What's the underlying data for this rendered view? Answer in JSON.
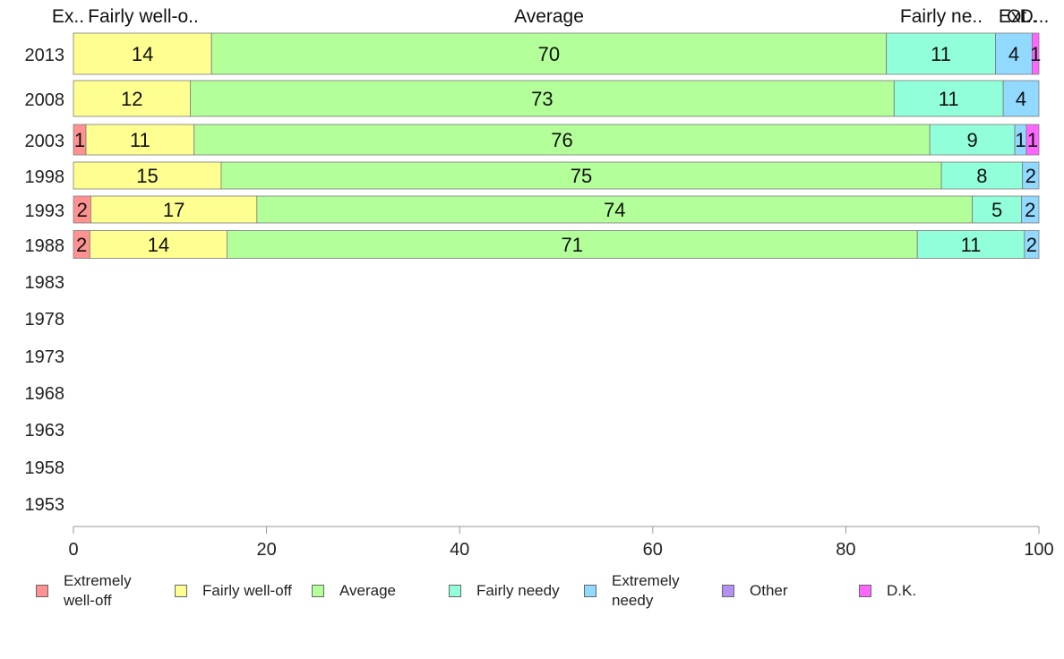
{
  "chart_data": {
    "type": "bar",
    "orientation": "horizontal",
    "stacked": true,
    "xlim": [
      0,
      100
    ],
    "x_ticks": [
      "0",
      "20",
      "40",
      "60",
      "80",
      "100"
    ],
    "categories": [
      "2013",
      "2008",
      "2003",
      "1998",
      "1993",
      "1988",
      "1983",
      "1978",
      "1973",
      "1968",
      "1963",
      "1958",
      "1953"
    ],
    "series": [
      {
        "name": "Extremely well-off",
        "color": "#ff9191",
        "values": [
          0,
          0,
          1.3,
          0,
          1.8,
          1.7,
          null,
          null,
          null,
          null,
          null,
          null,
          null
        ]
      },
      {
        "name": "Fairly well-off",
        "color": "#ffff91",
        "values": [
          14.3,
          12.1,
          11.2,
          15.3,
          17.2,
          14.2,
          null,
          null,
          null,
          null,
          null,
          null,
          null
        ]
      },
      {
        "name": "Average",
        "color": "#b3ff99",
        "values": [
          69.9,
          72.9,
          76.2,
          74.6,
          74.1,
          71.5,
          null,
          null,
          null,
          null,
          null,
          null,
          null
        ]
      },
      {
        "name": "Fairly needy",
        "color": "#91ffd9",
        "values": [
          11.3,
          11.3,
          8.8,
          8.4,
          5.1,
          11.1,
          null,
          null,
          null,
          null,
          null,
          null,
          null
        ]
      },
      {
        "name": "Extremely needy",
        "color": "#91d9ff",
        "values": [
          3.8,
          3.7,
          1.2,
          1.7,
          1.8,
          1.5,
          null,
          null,
          null,
          null,
          null,
          null,
          null
        ]
      },
      {
        "name": "Other",
        "color": "#b391f2",
        "values": [
          0,
          0,
          0,
          0,
          0,
          0,
          null,
          null,
          null,
          null,
          null,
          null,
          null
        ]
      },
      {
        "name": "D.K.",
        "color": "#ff66ff",
        "values": [
          0.7,
          0,
          1.3,
          0,
          0,
          0,
          null,
          null,
          null,
          null,
          null,
          null,
          null
        ]
      }
    ],
    "segment_labels": [
      [
        "",
        "14",
        "70",
        "11",
        "4",
        "",
        "1"
      ],
      [
        "",
        "12",
        "73",
        "11",
        "4",
        "",
        ""
      ],
      [
        "1",
        "11",
        "76",
        "9",
        "1",
        "",
        "1"
      ],
      [
        "",
        "15",
        "75",
        "8",
        "2",
        "",
        ""
      ],
      [
        "2",
        "17",
        "74",
        "5",
        "2",
        "",
        ""
      ],
      [
        "2",
        "14",
        "71",
        "11",
        "2",
        "",
        ""
      ]
    ],
    "top_labels": [
      "Ex..",
      "Fairly well-o..",
      "Average",
      "Fairly ne..",
      "Ex..",
      "Ot..",
      "D..."
    ],
    "legend_position": "bottom",
    "grid": false
  },
  "legend": [
    {
      "label": "Extremely well-off",
      "color": "#ff9191"
    },
    {
      "label": "Fairly well-off",
      "color": "#ffff91"
    },
    {
      "label": "Average",
      "color": "#b3ff99"
    },
    {
      "label": "Fairly needy",
      "color": "#91ffd9"
    },
    {
      "label": "Extremely needy",
      "color": "#91d9ff"
    },
    {
      "label": "Other",
      "color": "#b391f2"
    },
    {
      "label": "D.K.",
      "color": "#ff66ff"
    }
  ]
}
